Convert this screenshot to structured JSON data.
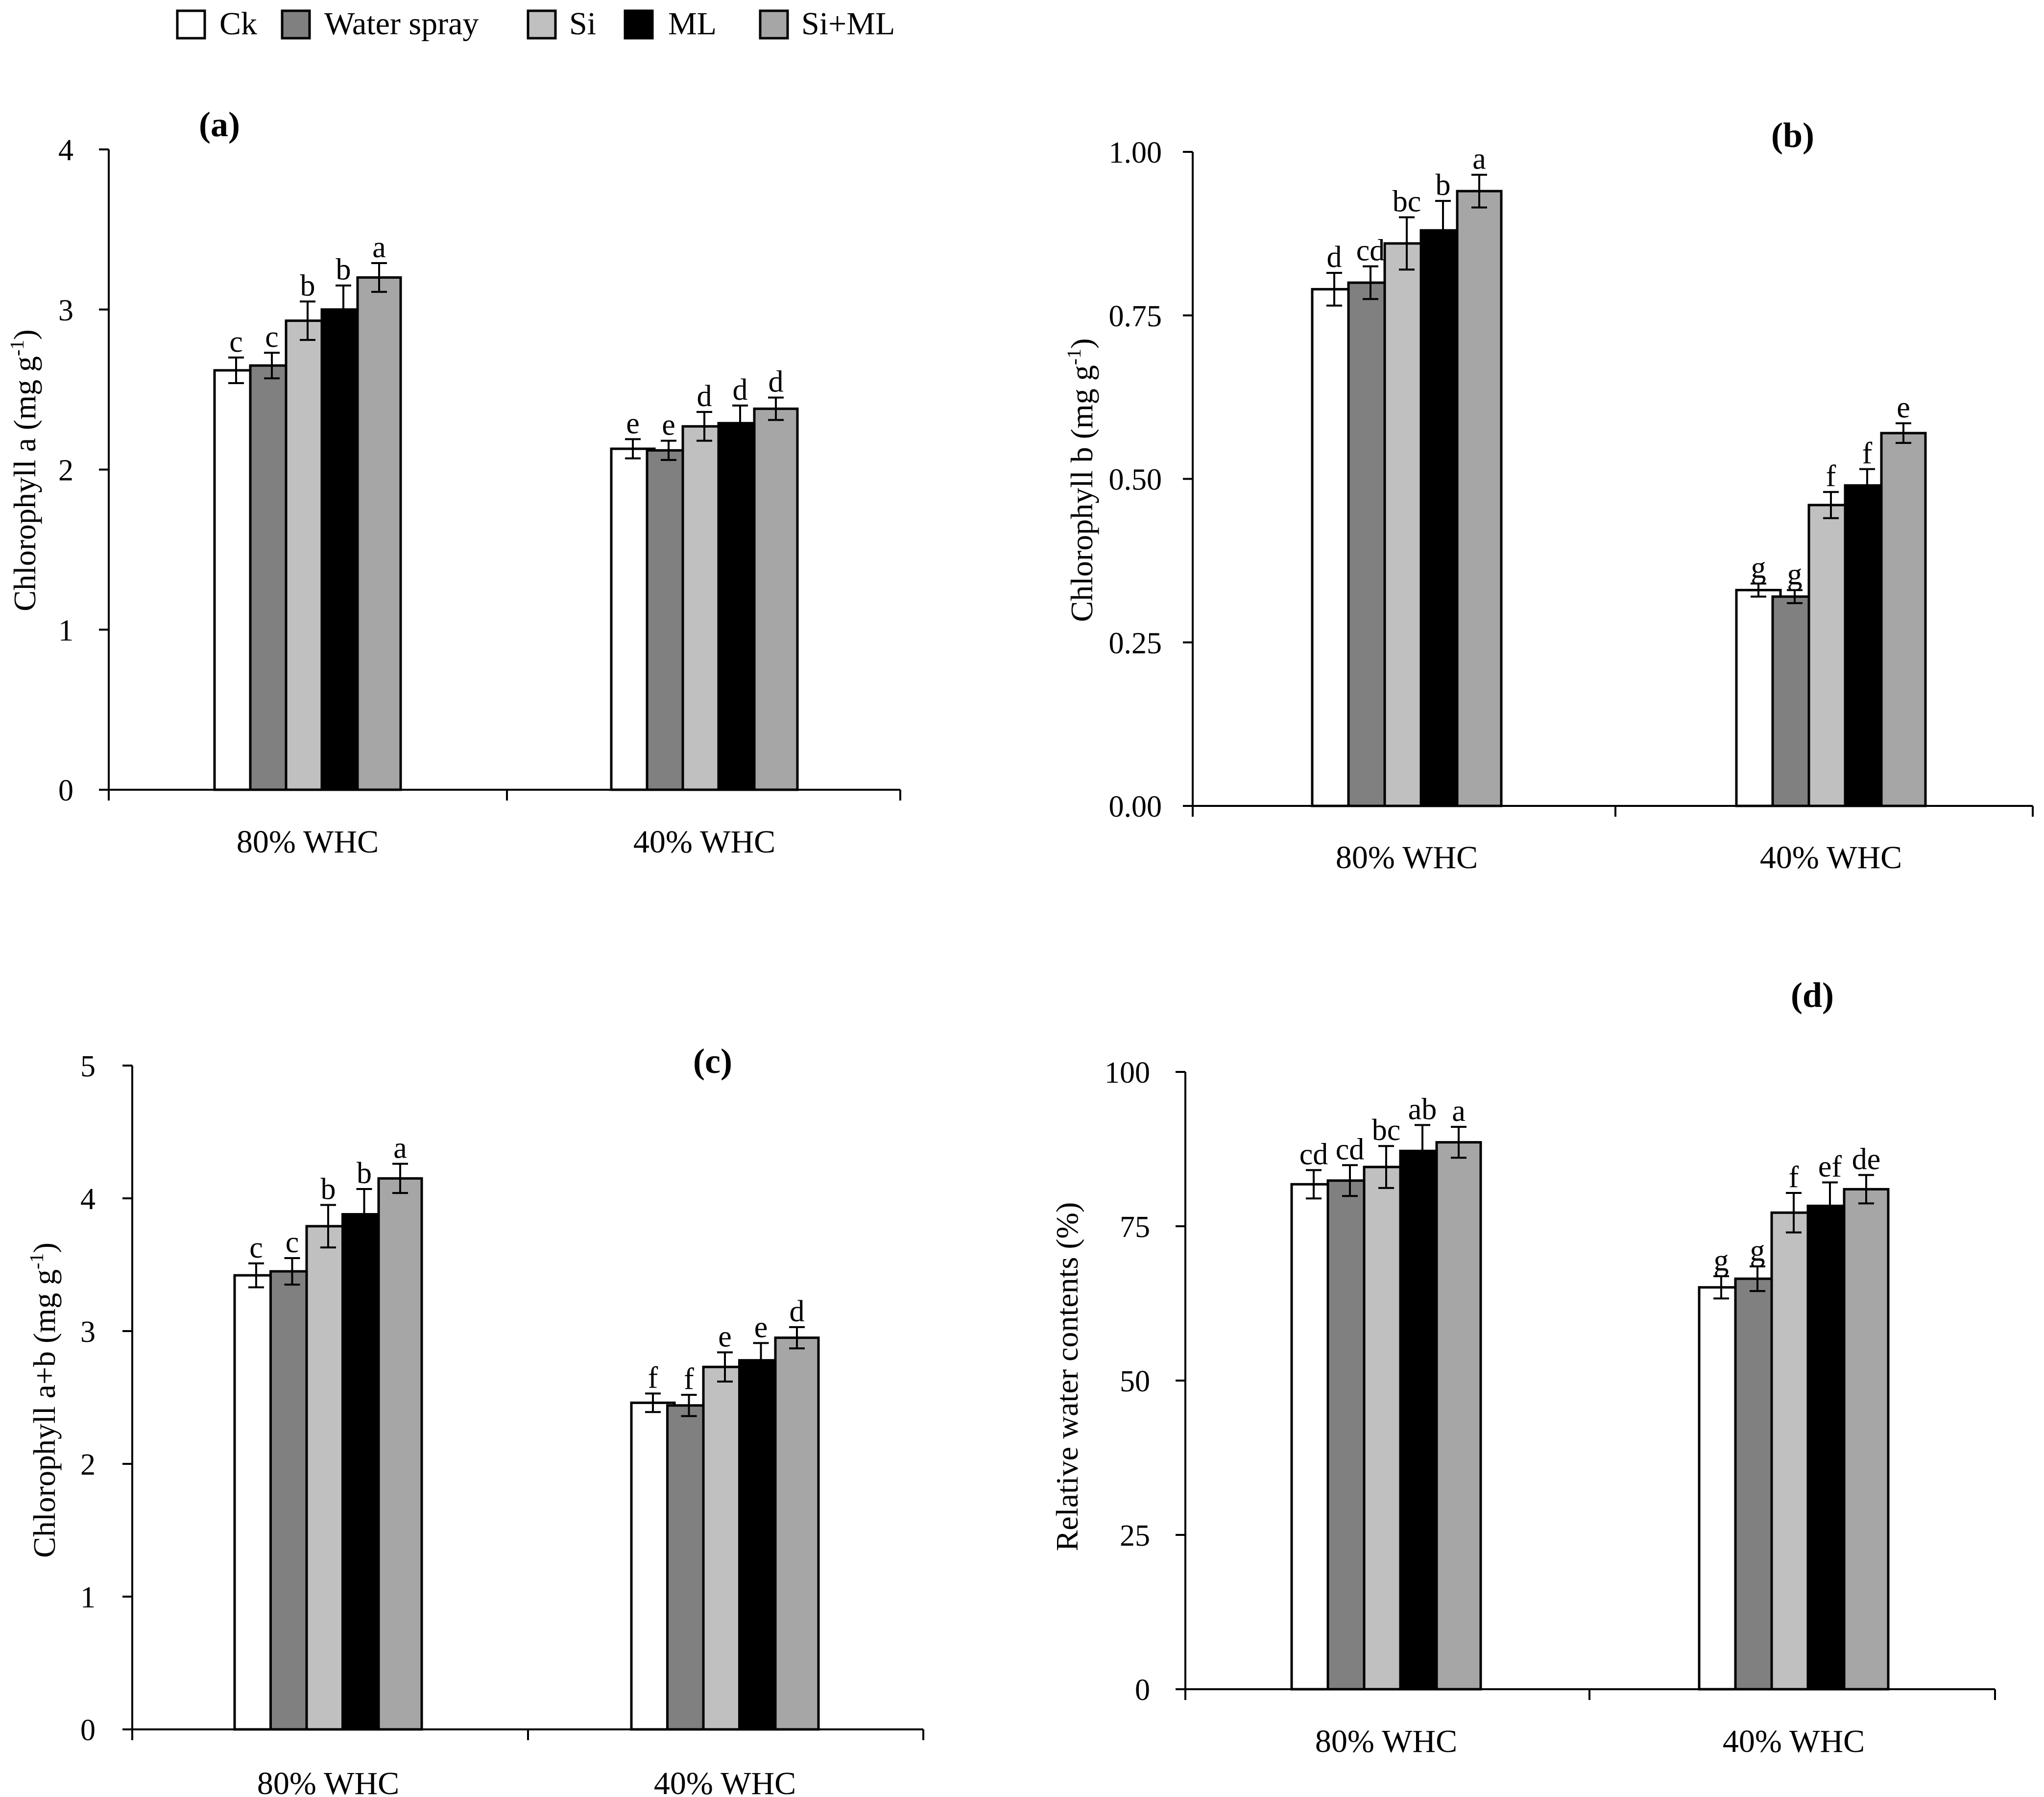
{
  "colors": {
    "Ck": "#ffffff",
    "Water spray": "#808080",
    "Si": "#c0c0c0",
    "ML": "#000000",
    "Si+ML": "#a6a6a6"
  },
  "legend": {
    "items": [
      "Ck",
      "Water spray",
      "Si",
      "ML",
      "Si+ML"
    ]
  },
  "chart_data": [
    {
      "type": "bar",
      "panel_label": "(a)",
      "ylabel_main": "Chlorophyll a  (mg g",
      "ylabel_sup": "-1",
      "ylabel_end": ")",
      "categories": [
        "80% WHC",
        "40% WHC"
      ],
      "ylim": [
        0,
        4
      ],
      "yticks": [
        "0",
        "1",
        "2",
        "3",
        "4"
      ],
      "series": [
        {
          "name": "Ck",
          "values": [
            2.62,
            2.13
          ],
          "errors": [
            0.08,
            0.06
          ],
          "letters": [
            "c",
            "e"
          ]
        },
        {
          "name": "Water spray",
          "values": [
            2.65,
            2.12
          ],
          "errors": [
            0.08,
            0.06
          ],
          "letters": [
            "c",
            "e"
          ]
        },
        {
          "name": "Si",
          "values": [
            2.93,
            2.27
          ],
          "errors": [
            0.12,
            0.09
          ],
          "letters": [
            "b",
            "d"
          ]
        },
        {
          "name": "ML",
          "values": [
            3.0,
            2.29
          ],
          "errors": [
            0.15,
            0.11
          ],
          "letters": [
            "b",
            "d"
          ]
        },
        {
          "name": "Si+ML",
          "values": [
            3.2,
            2.38
          ],
          "errors": [
            0.09,
            0.07
          ],
          "letters": [
            "a",
            "d"
          ]
        }
      ]
    },
    {
      "type": "bar",
      "panel_label": "(b)",
      "ylabel_main": "Chlorophyll b  (mg g",
      "ylabel_sup": "-1",
      "ylabel_end": ")",
      "categories": [
        "80% WHC",
        "40% WHC"
      ],
      "ylim": [
        0,
        1
      ],
      "yticks": [
        "0.00",
        "0.25",
        "0.50",
        "0.75",
        "1.00"
      ],
      "series": [
        {
          "name": "Ck",
          "values": [
            0.79,
            0.33
          ],
          "errors": [
            0.025,
            0.01
          ],
          "letters": [
            "d",
            "g"
          ]
        },
        {
          "name": "Water spray",
          "values": [
            0.8,
            0.32
          ],
          "errors": [
            0.025,
            0.01
          ],
          "letters": [
            "cd",
            "g"
          ]
        },
        {
          "name": "Si",
          "values": [
            0.86,
            0.46
          ],
          "errors": [
            0.04,
            0.02
          ],
          "letters": [
            "bc",
            "f"
          ]
        },
        {
          "name": "ML",
          "values": [
            0.88,
            0.49
          ],
          "errors": [
            0.045,
            0.025
          ],
          "letters": [
            "b",
            "f"
          ]
        },
        {
          "name": "Si+ML",
          "values": [
            0.94,
            0.57
          ],
          "errors": [
            0.025,
            0.015
          ],
          "letters": [
            "a",
            "e"
          ]
        }
      ]
    },
    {
      "type": "bar",
      "panel_label": "(c)",
      "ylabel_main": "Chlorophyll a+b  (mg g",
      "ylabel_sup": "-1",
      "ylabel_end": ")",
      "categories": [
        "80% WHC",
        "40% WHC"
      ],
      "ylim": [
        0,
        5
      ],
      "yticks": [
        "0",
        "1",
        "2",
        "3",
        "4",
        "5"
      ],
      "series": [
        {
          "name": "Ck",
          "values": [
            3.42,
            2.46
          ],
          "errors": [
            0.09,
            0.07
          ],
          "letters": [
            "c",
            "f"
          ]
        },
        {
          "name": "Water spray",
          "values": [
            3.45,
            2.44
          ],
          "errors": [
            0.1,
            0.08
          ],
          "letters": [
            "c",
            "f"
          ]
        },
        {
          "name": "Si",
          "values": [
            3.79,
            2.73
          ],
          "errors": [
            0.16,
            0.11
          ],
          "letters": [
            "b",
            "e"
          ]
        },
        {
          "name": "ML",
          "values": [
            3.88,
            2.78
          ],
          "errors": [
            0.19,
            0.13
          ],
          "letters": [
            "b",
            "e"
          ]
        },
        {
          "name": "Si+ML",
          "values": [
            4.15,
            2.95
          ],
          "errors": [
            0.11,
            0.08
          ],
          "letters": [
            "a",
            "d"
          ]
        }
      ]
    },
    {
      "type": "bar",
      "panel_label": "(d)",
      "ylabel_main": "Relative water contents (%)",
      "ylabel_sup": "",
      "ylabel_end": "",
      "categories": [
        "80% WHC",
        "40% WHC"
      ],
      "ylim": [
        0,
        100
      ],
      "yticks": [
        "0",
        "25",
        "50",
        "75",
        "100"
      ],
      "series": [
        {
          "name": "Ck",
          "values": [
            81.8,
            65.1
          ],
          "errors": [
            2.3,
            1.8
          ],
          "letters": [
            "cd",
            "g"
          ]
        },
        {
          "name": "Water spray",
          "values": [
            82.4,
            66.5
          ],
          "errors": [
            2.5,
            2.0
          ],
          "letters": [
            "cd",
            "g"
          ]
        },
        {
          "name": "Si",
          "values": [
            84.6,
            77.2
          ],
          "errors": [
            3.4,
            3.2
          ],
          "letters": [
            "bc",
            "f"
          ]
        },
        {
          "name": "ML",
          "values": [
            87.2,
            78.3
          ],
          "errors": [
            4.2,
            3.8
          ],
          "letters": [
            "ab",
            "ef"
          ]
        },
        {
          "name": "Si+ML",
          "values": [
            88.6,
            81.0
          ],
          "errors": [
            2.5,
            2.3
          ],
          "letters": [
            "a",
            "de"
          ]
        }
      ]
    }
  ]
}
